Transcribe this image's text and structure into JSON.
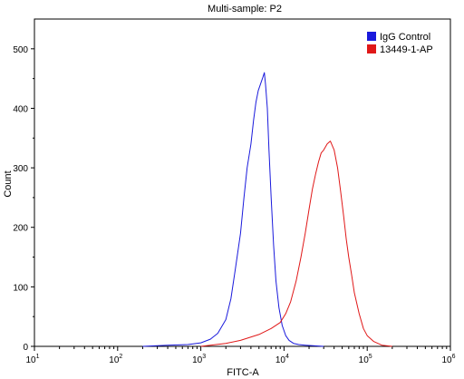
{
  "chart_data": {
    "type": "line",
    "title": "Multi-sample: P2",
    "xlabel": "FITC-A",
    "ylabel": "Count",
    "x_scale": "log",
    "xlim": [
      10,
      1000000
    ],
    "ylim": [
      0,
      550
    ],
    "x_ticks": [
      {
        "value": 10,
        "base": "10",
        "exp": "1"
      },
      {
        "value": 100,
        "base": "10",
        "exp": "2"
      },
      {
        "value": 1000,
        "base": "10",
        "exp": "3"
      },
      {
        "value": 10000,
        "base": "10",
        "exp": "4"
      },
      {
        "value": 100000,
        "base": "10",
        "exp": "5"
      },
      {
        "value": 1000000,
        "base": "10",
        "exp": "6"
      }
    ],
    "y_ticks": [
      0,
      100,
      200,
      300,
      400,
      500
    ],
    "grid": false,
    "legend_position": "top-right",
    "series": [
      {
        "name": "IgG Control",
        "color": "#1a1adc",
        "x": [
          200,
          400,
          700,
          1000,
          1300,
          1600,
          2000,
          2300,
          2600,
          3000,
          3300,
          3600,
          4000,
          4300,
          4600,
          4900,
          5200,
          5500,
          5800,
          6000,
          6300,
          6600,
          7000,
          7500,
          8000,
          8700,
          9500,
          10500,
          11500,
          13000,
          15000,
          18000,
          22000,
          30000
        ],
        "y": [
          0,
          2,
          3,
          6,
          12,
          22,
          45,
          80,
          130,
          190,
          250,
          300,
          340,
          380,
          410,
          430,
          440,
          450,
          460,
          440,
          400,
          330,
          250,
          170,
          110,
          65,
          35,
          18,
          10,
          5,
          3,
          2,
          1,
          0
        ]
      },
      {
        "name": "13449-1-AP",
        "color": "#e01818",
        "x": [
          1000,
          2000,
          3000,
          5000,
          7000,
          9000,
          10500,
          12000,
          14000,
          16000,
          18000,
          20000,
          22000,
          24000,
          26000,
          28000,
          30000,
          33000,
          36000,
          40000,
          44000,
          48000,
          52000,
          56000,
          60000,
          65000,
          70000,
          80000,
          90000,
          100000,
          120000,
          150000,
          200000
        ],
        "y": [
          0,
          5,
          10,
          20,
          30,
          40,
          55,
          75,
          110,
          150,
          190,
          230,
          265,
          290,
          310,
          325,
          330,
          340,
          345,
          330,
          300,
          260,
          220,
          180,
          150,
          120,
          90,
          55,
          30,
          18,
          8,
          2,
          0
        ]
      }
    ]
  }
}
